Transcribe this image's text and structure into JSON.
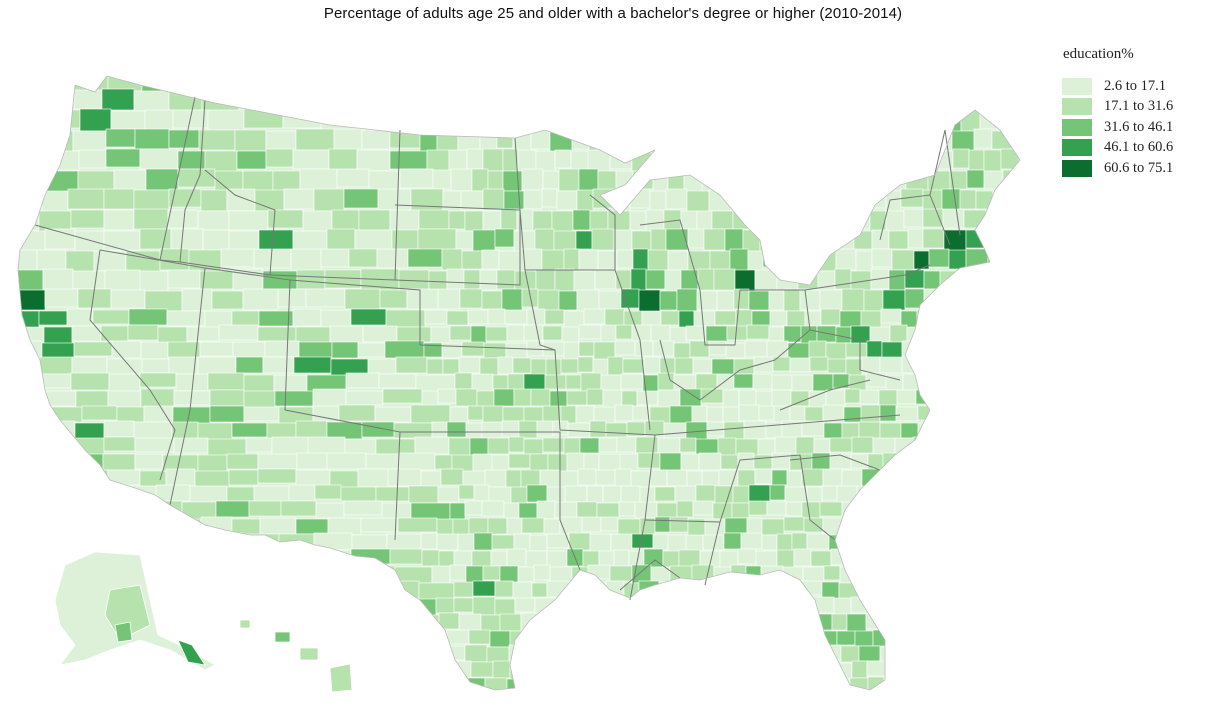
{
  "title": "Percentage of adults age 25 and older with a bachelor's degree or higher (2010-2014)",
  "legend": {
    "title": "education%",
    "items": [
      {
        "label": "2.6 to 17.1",
        "color": "#dcf1d8"
      },
      {
        "label": "17.1 to 31.6",
        "color": "#b6e2ad"
      },
      {
        "label": "31.6 to 46.1",
        "color": "#74c676"
      },
      {
        "label": "46.1 to 60.6",
        "color": "#34a151"
      },
      {
        "label": "60.6 to 75.1",
        "color": "#0b6e2f"
      }
    ]
  },
  "colors": {
    "state_border": "#777777",
    "county_border": "#ffffff",
    "base_fill": "#cbe9c4"
  }
}
